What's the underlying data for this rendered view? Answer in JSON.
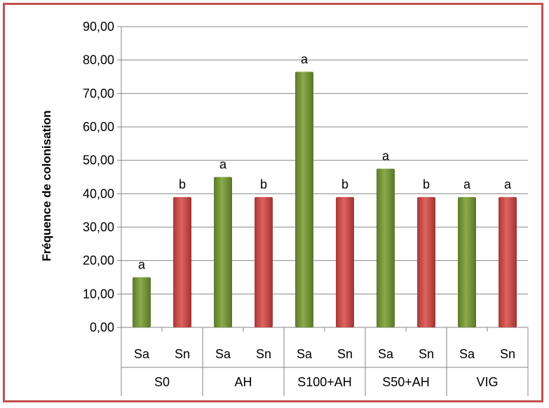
{
  "chart_data": {
    "type": "bar",
    "ylabel": "Fréquence de colonisation",
    "xlabel": "",
    "ylim": [
      0,
      90
    ],
    "ytick_step": 10,
    "ytick_labels": [
      "0,00",
      "10,00",
      "20,00",
      "30,00",
      "40,00",
      "50,00",
      "60,00",
      "70,00",
      "80,00",
      "90,00"
    ],
    "grid": true,
    "legend": "none",
    "groups": [
      {
        "name": "S0",
        "bars": [
          {
            "category": "Sa",
            "value": 15,
            "letter": "a"
          },
          {
            "category": "Sn",
            "value": 39,
            "letter": "b"
          }
        ]
      },
      {
        "name": "AH",
        "bars": [
          {
            "category": "Sa",
            "value": 45,
            "letter": "a"
          },
          {
            "category": "Sn",
            "value": 39,
            "letter": "b"
          }
        ]
      },
      {
        "name": "S100+AH",
        "bars": [
          {
            "category": "Sa",
            "value": 76.5,
            "letter": "a"
          },
          {
            "category": "Sn",
            "value": 39,
            "letter": "b"
          }
        ]
      },
      {
        "name": "S50+AH",
        "bars": [
          {
            "category": "Sa",
            "value": 47.5,
            "letter": "a"
          },
          {
            "category": "Sn",
            "value": 39,
            "letter": "b"
          }
        ]
      },
      {
        "name": "VIG",
        "bars": [
          {
            "category": "Sa",
            "value": 39,
            "letter": "a"
          },
          {
            "category": "Sn",
            "value": 39,
            "letter": "a"
          }
        ]
      }
    ],
    "colors": {
      "Sa": "#77933c",
      "Sn": "#c0504d",
      "frame": "#c0504d",
      "grid": "#868686"
    }
  }
}
